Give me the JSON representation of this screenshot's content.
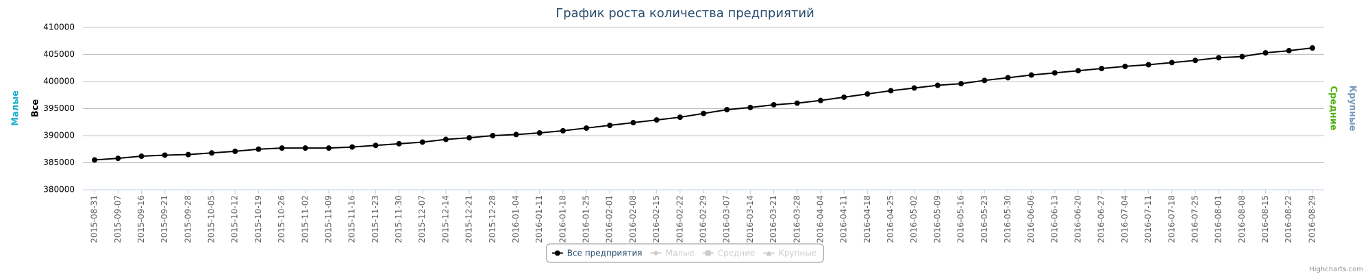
{
  "chart_data": {
    "type": "line",
    "title": "График роста количества предприятий",
    "axis_titles": {
      "left": [
        "Малые",
        "Все"
      ],
      "right": [
        "Средние",
        "Крупные"
      ]
    },
    "axis_title_colors": {
      "left": [
        "#1aadce",
        "#000000"
      ],
      "right": [
        "#4fb013",
        "#7798bf"
      ]
    },
    "categories": [
      "2015-08-31",
      "2015-09-07",
      "2015-09-16",
      "2015-09-21",
      "2015-09-28",
      "2015-10-05",
      "2015-10-12",
      "2015-10-19",
      "2015-10-26",
      "2015-11-02",
      "2015-11-09",
      "2015-11-16",
      "2015-11-23",
      "2015-11-30",
      "2015-12-07",
      "2015-12-14",
      "2015-12-21",
      "2015-12-28",
      "2016-01-04",
      "2016-01-11",
      "2016-01-18",
      "2016-01-25",
      "2016-02-01",
      "2016-02-08",
      "2016-02-15",
      "2016-02-22",
      "2016-02-29",
      "2016-03-07",
      "2016-03-14",
      "2016-03-21",
      "2016-03-28",
      "2016-04-04",
      "2016-04-11",
      "2016-04-18",
      "2016-04-25",
      "2016-05-02",
      "2016-05-09",
      "2016-05-16",
      "2016-05-23",
      "2016-05-30",
      "2016-06-06",
      "2016-06-13",
      "2016-06-20",
      "2016-06-27",
      "2016-07-04",
      "2016-07-11",
      "2016-07-18",
      "2016-07-25",
      "2016-08-01",
      "2016-08-08",
      "2016-08-15",
      "2016-08-22",
      "2016-08-29"
    ],
    "series": [
      {
        "name": "Все предприятия",
        "color": "#000000",
        "marker": "circle",
        "visible": true,
        "values": [
          385500,
          385800,
          386200,
          386400,
          386500,
          386800,
          387100,
          387500,
          387700,
          387700,
          387700,
          387900,
          388200,
          388500,
          388800,
          389300,
          389600,
          390000,
          390200,
          390500,
          390900,
          391400,
          391900,
          392400,
          392900,
          393400,
          394100,
          394800,
          395200,
          395700,
          396000,
          396500,
          397100,
          397700,
          398300,
          398800,
          399300,
          399600,
          400200,
          400700,
          401200,
          401600,
          402000,
          402400,
          402800,
          403100,
          403500,
          403900,
          404400,
          404600,
          405300,
          405700,
          406200
        ]
      },
      {
        "name": "Малые",
        "color": "#cccccc",
        "marker": "diamond",
        "visible": false
      },
      {
        "name": "Средние",
        "color": "#cccccc",
        "marker": "square",
        "visible": false
      },
      {
        "name": "Крупные",
        "color": "#cccccc",
        "marker": "triangle",
        "visible": false
      }
    ],
    "ylim": [
      380000,
      410000
    ],
    "yticks": [
      380000,
      385000,
      390000,
      395000,
      400000,
      405000,
      410000
    ],
    "grid": true,
    "legend": "bottom",
    "credits": "Highcharts.com"
  }
}
